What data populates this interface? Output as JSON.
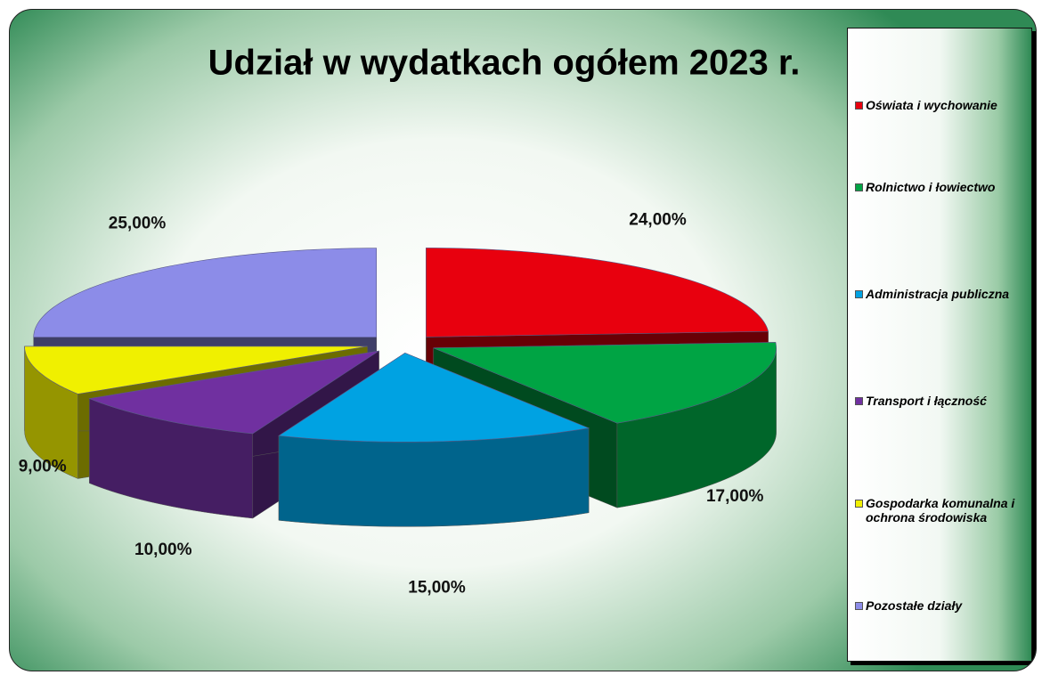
{
  "chart_data": {
    "type": "pie",
    "title": "Udział w  wydatkach ogółem  2023 r.",
    "categories": [
      "Oświata i wychowanie",
      "Rolnictwo i łowiectwo",
      "Administracja publiczna",
      "Transport i łączność",
      "Gospodarka komunalna i ochrona środowiska",
      "Pozostałe działy"
    ],
    "values": [
      24,
      17,
      15,
      10,
      9,
      25
    ],
    "value_labels": [
      "24,00%",
      "17,00%",
      "15,00%",
      "10,00%",
      "9,00%",
      "25,00%"
    ],
    "colors": [
      "#e8000e",
      "#00a444",
      "#00a2e2",
      "#7030a0",
      "#f0f000",
      "#8c8ce8"
    ],
    "legend": "right"
  }
}
